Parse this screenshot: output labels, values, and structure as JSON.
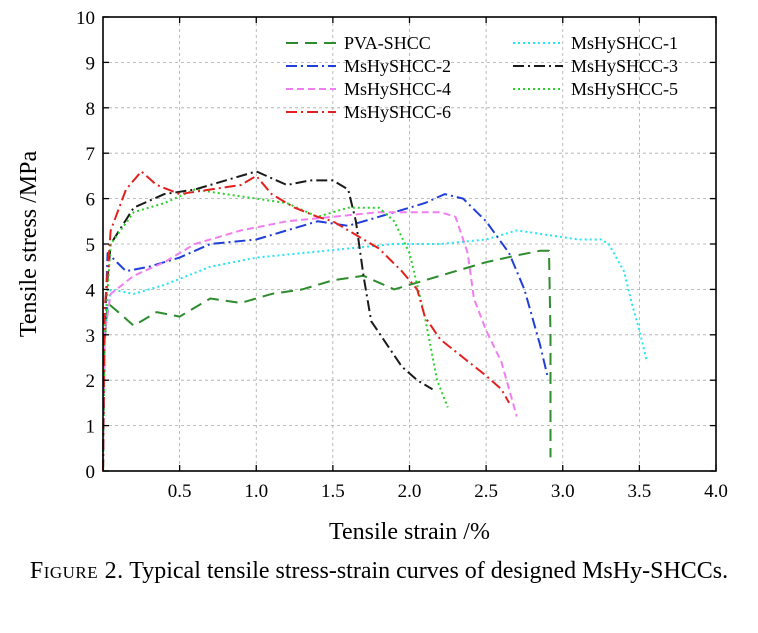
{
  "chart_data": {
    "type": "line",
    "xlabel": "Tensile strain /%",
    "ylabel": "Tensile stress /MPa",
    "xlim": [
      0,
      4.0
    ],
    "ylim": [
      0,
      10
    ],
    "x_ticks": [
      0.5,
      1.0,
      1.5,
      2.0,
      2.5,
      3.0,
      3.5,
      4.0
    ],
    "x_tick_labels": [
      "0.5",
      "1.0",
      "1.5",
      "2.0",
      "2.5",
      "3.0",
      "3.5",
      "4.0"
    ],
    "y_ticks": [
      0,
      1,
      2,
      3,
      4,
      5,
      6,
      7,
      8,
      9,
      10
    ],
    "y_tick_labels": [
      "0",
      "1",
      "2",
      "3",
      "4",
      "5",
      "6",
      "7",
      "8",
      "9",
      "10"
    ],
    "grid": true,
    "legend_position": "top-right",
    "series": [
      {
        "name": "PVA-SHCC",
        "color": "#2e8b2e",
        "dash": "long-dash",
        "points": [
          [
            0,
            0
          ],
          [
            0.01,
            2.8
          ],
          [
            0.03,
            3.7
          ],
          [
            0.1,
            3.5
          ],
          [
            0.2,
            3.2
          ],
          [
            0.35,
            3.5
          ],
          [
            0.5,
            3.4
          ],
          [
            0.7,
            3.8
          ],
          [
            0.9,
            3.7
          ],
          [
            1.1,
            3.9
          ],
          [
            1.3,
            4.0
          ],
          [
            1.5,
            4.2
          ],
          [
            1.7,
            4.3
          ],
          [
            1.9,
            4.0
          ],
          [
            2.1,
            4.2
          ],
          [
            2.3,
            4.4
          ],
          [
            2.5,
            4.6
          ],
          [
            2.7,
            4.75
          ],
          [
            2.85,
            4.85
          ],
          [
            2.91,
            4.85
          ],
          [
            2.92,
            3.0
          ],
          [
            2.92,
            1.5
          ],
          [
            2.92,
            0.3
          ]
        ]
      },
      {
        "name": "MsHySHCC-1",
        "color": "#22e6f2",
        "dash": "dot",
        "points": [
          [
            0,
            0
          ],
          [
            0.01,
            3.0
          ],
          [
            0.05,
            4.0
          ],
          [
            0.2,
            3.9
          ],
          [
            0.4,
            4.1
          ],
          [
            0.7,
            4.5
          ],
          [
            1.0,
            4.7
          ],
          [
            1.3,
            4.8
          ],
          [
            1.6,
            4.9
          ],
          [
            1.9,
            5.0
          ],
          [
            2.2,
            5.0
          ],
          [
            2.5,
            5.1
          ],
          [
            2.7,
            5.3
          ],
          [
            2.9,
            5.2
          ],
          [
            3.1,
            5.1
          ],
          [
            3.25,
            5.1
          ],
          [
            3.3,
            5.0
          ],
          [
            3.4,
            4.4
          ],
          [
            3.45,
            3.7
          ],
          [
            3.5,
            3.1
          ],
          [
            3.55,
            2.4
          ]
        ]
      },
      {
        "name": "MsHySHCC-2",
        "color": "#1f3fd6",
        "dash": "dash-dot",
        "points": [
          [
            0,
            0
          ],
          [
            0.01,
            2.8
          ],
          [
            0.03,
            4.8
          ],
          [
            0.15,
            4.4
          ],
          [
            0.3,
            4.5
          ],
          [
            0.5,
            4.7
          ],
          [
            0.7,
            5.0
          ],
          [
            1.0,
            5.1
          ],
          [
            1.2,
            5.3
          ],
          [
            1.4,
            5.5
          ],
          [
            1.6,
            5.4
          ],
          [
            1.8,
            5.6
          ],
          [
            2.0,
            5.8
          ],
          [
            2.1,
            5.9
          ],
          [
            2.23,
            6.1
          ],
          [
            2.35,
            6.0
          ],
          [
            2.5,
            5.5
          ],
          [
            2.65,
            4.8
          ],
          [
            2.75,
            4.0
          ],
          [
            2.85,
            2.8
          ],
          [
            2.9,
            2.1
          ]
        ]
      },
      {
        "name": "MsHySHCC-3",
        "color": "#1a1a1a",
        "dash": "dash-dot",
        "points": [
          [
            0,
            0
          ],
          [
            0.01,
            3.5
          ],
          [
            0.05,
            5.0
          ],
          [
            0.2,
            5.8
          ],
          [
            0.4,
            6.1
          ],
          [
            0.6,
            6.2
          ],
          [
            0.8,
            6.4
          ],
          [
            1.0,
            6.6
          ],
          [
            1.2,
            6.3
          ],
          [
            1.35,
            6.4
          ],
          [
            1.5,
            6.4
          ],
          [
            1.6,
            6.2
          ],
          [
            1.65,
            5.5
          ],
          [
            1.7,
            4.3
          ],
          [
            1.75,
            3.3
          ],
          [
            1.85,
            2.8
          ],
          [
            1.95,
            2.3
          ],
          [
            2.05,
            2.0
          ],
          [
            2.15,
            1.8
          ]
        ]
      },
      {
        "name": "MsHySHCC-4",
        "color": "#f07ef0",
        "dash": "short-dash",
        "points": [
          [
            0,
            0
          ],
          [
            0.01,
            3.0
          ],
          [
            0.05,
            3.9
          ],
          [
            0.2,
            4.3
          ],
          [
            0.4,
            4.6
          ],
          [
            0.6,
            5.0
          ],
          [
            0.9,
            5.3
          ],
          [
            1.2,
            5.5
          ],
          [
            1.5,
            5.6
          ],
          [
            1.8,
            5.7
          ],
          [
            2.0,
            5.7
          ],
          [
            2.2,
            5.7
          ],
          [
            2.3,
            5.6
          ],
          [
            2.38,
            4.8
          ],
          [
            2.42,
            3.8
          ],
          [
            2.5,
            3.1
          ],
          [
            2.6,
            2.4
          ],
          [
            2.65,
            1.8
          ],
          [
            2.7,
            1.2
          ]
        ]
      },
      {
        "name": "MsHySHCC-5",
        "color": "#29d129",
        "dash": "dot",
        "points": [
          [
            0,
            0
          ],
          [
            0.01,
            3.0
          ],
          [
            0.05,
            5.0
          ],
          [
            0.2,
            5.7
          ],
          [
            0.4,
            5.9
          ],
          [
            0.6,
            6.2
          ],
          [
            0.8,
            6.1
          ],
          [
            1.0,
            6.0
          ],
          [
            1.2,
            5.9
          ],
          [
            1.4,
            5.6
          ],
          [
            1.6,
            5.8
          ],
          [
            1.8,
            5.8
          ],
          [
            1.9,
            5.5
          ],
          [
            2.0,
            4.8
          ],
          [
            2.1,
            3.4
          ],
          [
            2.18,
            2.0
          ],
          [
            2.25,
            1.4
          ]
        ]
      },
      {
        "name": "MsHySHCC-6",
        "color": "#e32020",
        "dash": "dash-dot",
        "points": [
          [
            0,
            0
          ],
          [
            0.01,
            3.5
          ],
          [
            0.05,
            5.3
          ],
          [
            0.15,
            6.2
          ],
          [
            0.25,
            6.6
          ],
          [
            0.35,
            6.3
          ],
          [
            0.5,
            6.1
          ],
          [
            0.7,
            6.2
          ],
          [
            0.9,
            6.3
          ],
          [
            1.0,
            6.5
          ],
          [
            1.1,
            6.1
          ],
          [
            1.25,
            5.8
          ],
          [
            1.4,
            5.6
          ],
          [
            1.5,
            5.5
          ],
          [
            1.65,
            5.2
          ],
          [
            1.8,
            4.9
          ],
          [
            1.95,
            4.4
          ],
          [
            2.05,
            4.0
          ],
          [
            2.1,
            3.4
          ],
          [
            2.2,
            2.9
          ],
          [
            2.35,
            2.5
          ],
          [
            2.5,
            2.1
          ],
          [
            2.6,
            1.8
          ],
          [
            2.65,
            1.5
          ]
        ]
      }
    ]
  },
  "caption": {
    "figure_label": "Figure 2.",
    "text": "Typical tensile stress-strain curves of designed MsHy-SHCCs."
  }
}
